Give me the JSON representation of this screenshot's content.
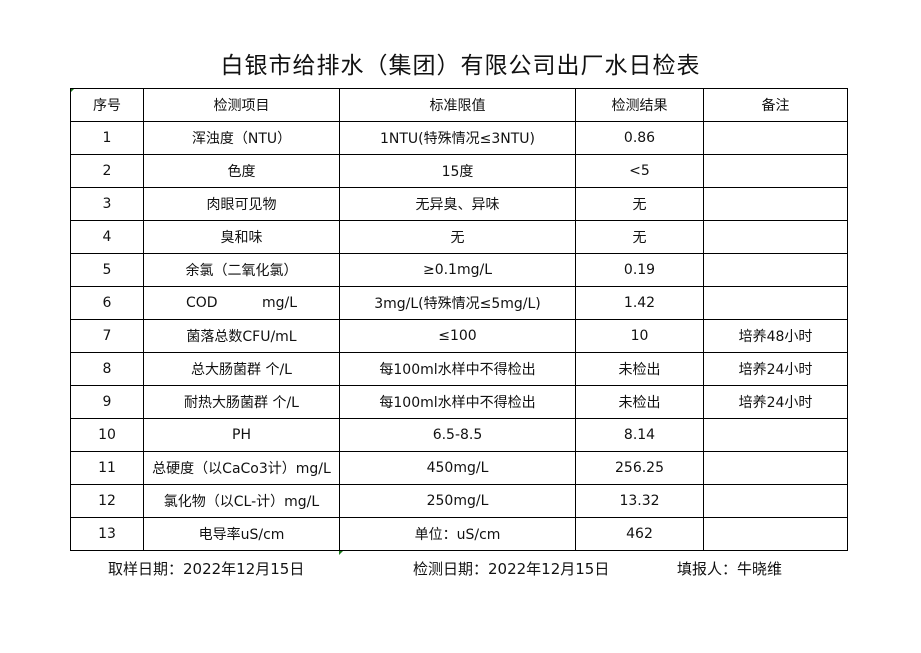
{
  "title": "白银市给排水（集团）有限公司出厂水日检表",
  "headers": [
    "序号",
    "检测项目",
    "标准限值",
    "检测结果",
    "备注"
  ],
  "rows": [
    [
      "1",
      "浑浊度（NTU）",
      "1NTU(特殊情况≤3NTU)",
      "0.86",
      ""
    ],
    [
      "2",
      "色度",
      "15度",
      "<5",
      ""
    ],
    [
      "3",
      "肉眼可见物",
      "无异臭、异味",
      "无",
      ""
    ],
    [
      "4",
      "臭和味",
      "无",
      "无",
      ""
    ],
    [
      "5",
      "余氯（二氧化氯）",
      "≥0.1mg/L",
      "0.19",
      ""
    ],
    [
      "6",
      "COD          mg/L",
      "3mg/L(特殊情况≤5mg/L)",
      "1.42",
      ""
    ],
    [
      "7",
      "菌落总数CFU/mL",
      "≤100",
      "10",
      "培养48小时"
    ],
    [
      "8",
      "总大肠菌群 个/L",
      "每100ml水样中不得检出",
      "未检出",
      "培养24小时"
    ],
    [
      "9",
      "耐热大肠菌群 个/L",
      "每100ml水样中不得检出",
      "未检出",
      "培养24小时"
    ],
    [
      "10",
      "PH",
      "6.5-8.5",
      "8.14",
      ""
    ],
    [
      "11",
      "总硬度（以CaCo3计）mg/L",
      "450mg/L",
      "256.25",
      ""
    ],
    [
      "12",
      "氯化物（以CL-计）mg/L",
      "250mg/L",
      "13.32",
      ""
    ],
    [
      "13",
      "电导率uS/cm",
      "单位：uS/cm",
      "462",
      ""
    ]
  ],
  "footer": {
    "sampling_date": "取样日期：2022年12月15日",
    "test_date": "检测日期：2022年12月15日",
    "reporter": "填报人：牛晓维"
  }
}
